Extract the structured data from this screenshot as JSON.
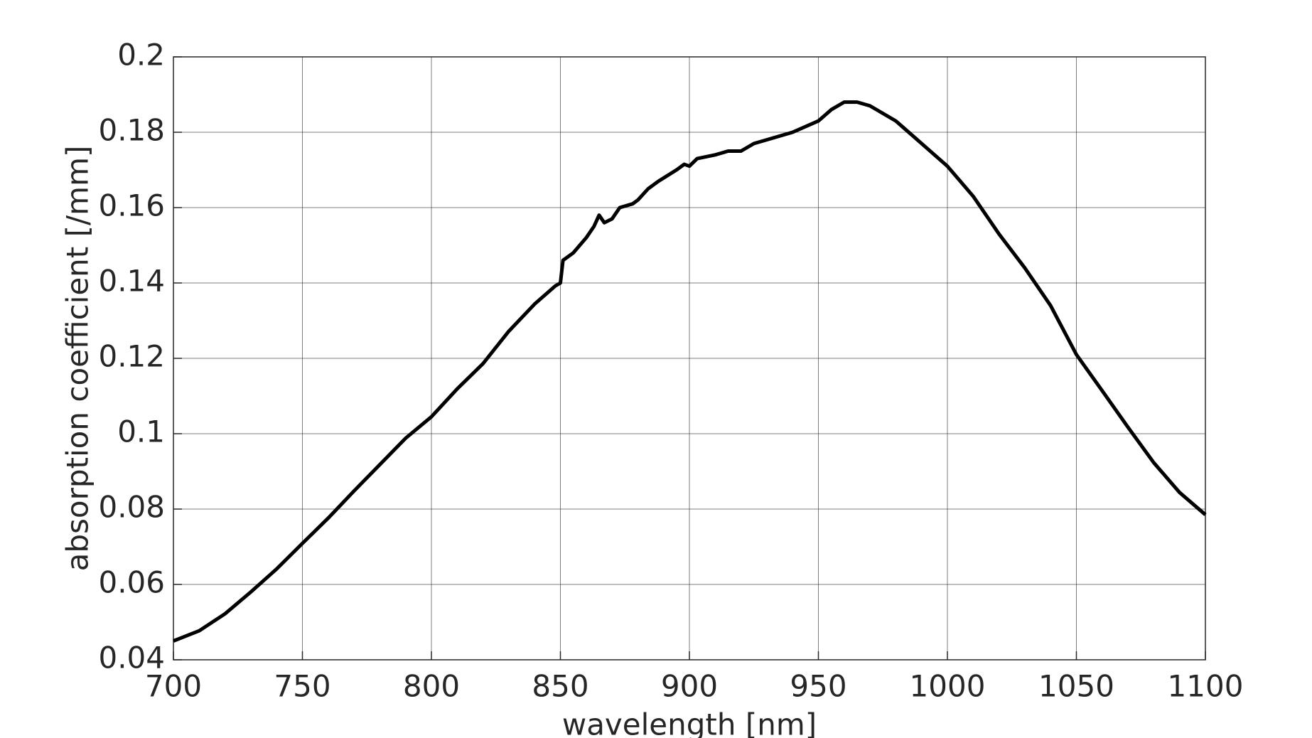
{
  "chart_data": {
    "type": "line",
    "x_label": "wavelength [nm]",
    "y_label": "absorption coefficient [/mm]",
    "x": [
      700,
      710,
      720,
      730,
      740,
      750,
      760,
      770,
      780,
      790,
      800,
      810,
      820,
      830,
      840,
      848,
      850,
      851,
      855,
      860,
      863,
      865,
      867,
      870,
      873,
      878,
      880,
      884,
      888,
      895,
      898,
      900,
      903,
      910,
      915,
      920,
      925,
      930,
      940,
      950,
      955,
      960,
      965,
      970,
      980,
      990,
      1000,
      1010,
      1020,
      1030,
      1040,
      1050,
      1060,
      1070,
      1080,
      1090,
      1100
    ],
    "series": [
      {
        "name": "absorption coefficient",
        "color": "#000000",
        "values": [
          0.045,
          0.0477,
          0.0522,
          0.058,
          0.0641,
          0.0709,
          0.0776,
          0.0848,
          0.0918,
          0.0988,
          0.1045,
          0.1119,
          0.1186,
          0.1272,
          0.1344,
          0.1392,
          0.14,
          0.146,
          0.148,
          0.152,
          0.155,
          0.158,
          0.156,
          0.157,
          0.16,
          0.161,
          0.162,
          0.165,
          0.167,
          0.17,
          0.1715,
          0.171,
          0.173,
          0.174,
          0.175,
          0.175,
          0.177,
          0.178,
          0.18,
          0.183,
          0.186,
          0.188,
          0.188,
          0.187,
          0.183,
          0.177,
          0.171,
          0.163,
          0.153,
          0.144,
          0.134,
          0.121,
          0.1114,
          0.1017,
          0.0923,
          0.0844,
          0.0785
        ]
      }
    ],
    "xlim": [
      700,
      1100
    ],
    "xticks": [
      700,
      750,
      800,
      850,
      900,
      950,
      1000,
      1050,
      1100
    ],
    "ylim": [
      0.04,
      0.2
    ],
    "yticks": [
      0.04,
      0.06,
      0.08,
      0.1,
      0.12,
      0.14,
      0.16,
      0.18,
      0.2
    ],
    "grid": true
  }
}
